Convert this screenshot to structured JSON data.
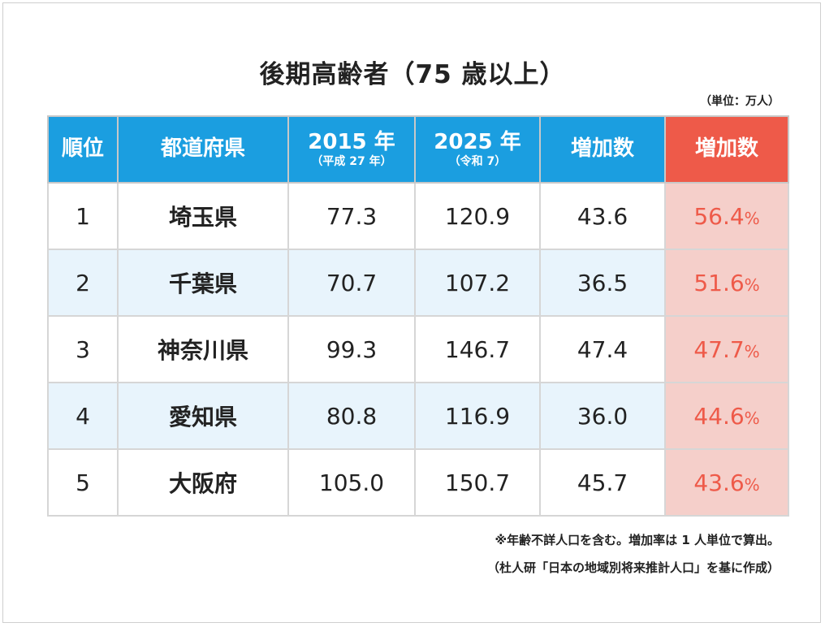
{
  "chart_data": {
    "type": "table",
    "title": "後期高齢者（75 歳以上）",
    "unit": "（単位：万人）",
    "columns": [
      {
        "label": "順位",
        "sub": ""
      },
      {
        "label": "都道府県",
        "sub": ""
      },
      {
        "label": "2015 年",
        "sub": "（平成 27 年）"
      },
      {
        "label": "2025 年",
        "sub": "（令和 7）"
      },
      {
        "label": "増加数",
        "sub": ""
      },
      {
        "label": "増加数",
        "sub": ""
      }
    ],
    "rows": [
      {
        "rank": "1",
        "pref": "埼玉県",
        "y2015": "77.3",
        "y2025": "120.9",
        "increase": "43.6",
        "rate": "56.4",
        "rate_unit": "%"
      },
      {
        "rank": "2",
        "pref": "千葉県",
        "y2015": "70.7",
        "y2025": "107.2",
        "increase": "36.5",
        "rate": "51.6",
        "rate_unit": "%"
      },
      {
        "rank": "3",
        "pref": "神奈川県",
        "y2015": "99.3",
        "y2025": "146.7",
        "increase": "47.4",
        "rate": "47.7",
        "rate_unit": "%"
      },
      {
        "rank": "4",
        "pref": "愛知県",
        "y2015": "80.8",
        "y2025": "116.9",
        "increase": "36.0",
        "rate": "44.6",
        "rate_unit": "%"
      },
      {
        "rank": "5",
        "pref": "大阪府",
        "y2015": "105.0",
        "y2025": "150.7",
        "increase": "45.7",
        "rate": "43.6",
        "rate_unit": "%"
      }
    ],
    "notes": [
      "※年齢不詳人口を含む。増加率は 1 人単位で算出。",
      "（杜人研「日本の地域別将来推計人口」を基に作成）"
    ],
    "colors": {
      "header": "#1b9ee0",
      "highlight_header": "#ee5a49",
      "highlight_cell": "#f5cfca",
      "highlight_text": "#ee5a49",
      "alt_row": "#e8f4fc"
    }
  }
}
